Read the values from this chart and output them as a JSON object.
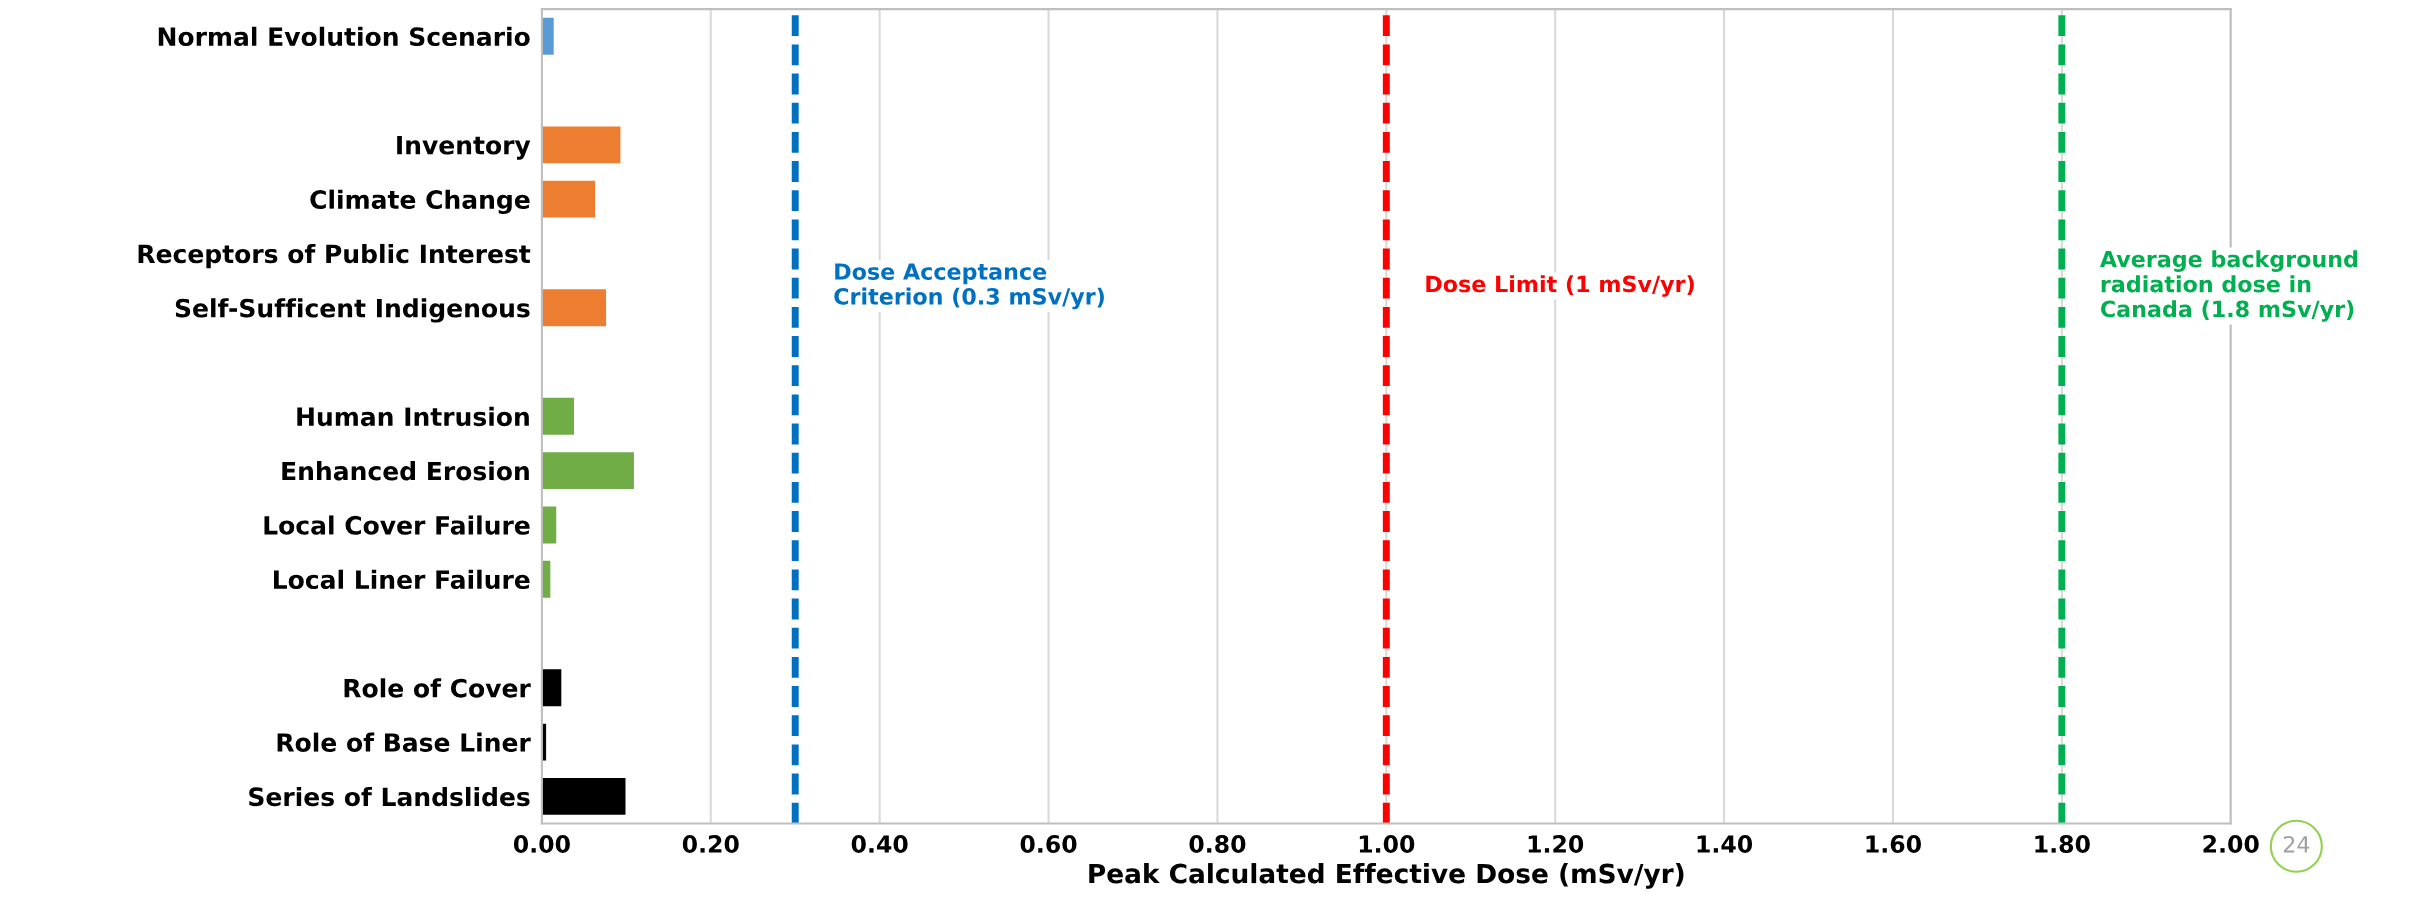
{
  "chart_data": {
    "type": "bar",
    "orientation": "horizontal",
    "categories": [
      "Normal Evolution Scenario",
      null,
      "Inventory",
      "Climate Change",
      "Receptors of Public Interest",
      "Self-Sufficent Indigenous",
      null,
      "Human Intrusion",
      "Enhanced Erosion",
      "Local Cover Failure",
      "Local Liner Failure",
      null,
      "Role of Cover",
      "Role of Base Liner",
      "Series of Landslides"
    ],
    "values": [
      0.014,
      null,
      0.093,
      0.063,
      null,
      0.076,
      null,
      0.038,
      0.109,
      0.017,
      0.01,
      null,
      0.023,
      0.005,
      0.099
    ],
    "colors": [
      "#5b9bd5",
      "#5b9bd5",
      "#ed7d31",
      "#ed7d31",
      "#ed7d31",
      "#ed7d31",
      "#70ad47",
      "#70ad47",
      "#70ad47",
      "#70ad47",
      "#70ad47",
      "#000000",
      "#000000",
      "#000000",
      "#000000"
    ],
    "xlim": [
      0,
      2
    ],
    "xticks": [
      {
        "value": 0,
        "label": "0.00"
      },
      {
        "value": 0.2,
        "label": "0.20"
      },
      {
        "value": 0.4,
        "label": "0.40"
      },
      {
        "value": 0.6,
        "label": "0.60"
      },
      {
        "value": 0.8,
        "label": "0.80"
      },
      {
        "value": 1,
        "label": "1.00"
      },
      {
        "value": 1.2,
        "label": "1.20"
      },
      {
        "value": 1.4,
        "label": "1.40"
      },
      {
        "value": 1.6,
        "label": "1.60"
      },
      {
        "value": 1.8,
        "label": "1.80"
      },
      {
        "value": 2,
        "label": "2.00"
      }
    ],
    "xlabel": "Peak Calculated Effective Dose (mSv/yr)",
    "grid": "x",
    "legend": false,
    "ref_lines": [
      {
        "axis": "x",
        "value": 0.3,
        "label": "Dose Acceptance\nCriterion (0.3 mSv/yr)",
        "color": "#0070c0",
        "line_style": "dashed"
      },
      {
        "axis": "x",
        "value": 1,
        "label": "Dose Limit (1 mSv/yr)",
        "color": "#ff0000",
        "line_style": "dashed"
      },
      {
        "axis": "x",
        "value": 1.8,
        "label": "Average background\nradiation dose in\nCanada (1.8 mSv/yr)",
        "color": "#00b050",
        "line_style": "dashed"
      }
    ],
    "annotations": [
      "24"
    ]
  }
}
